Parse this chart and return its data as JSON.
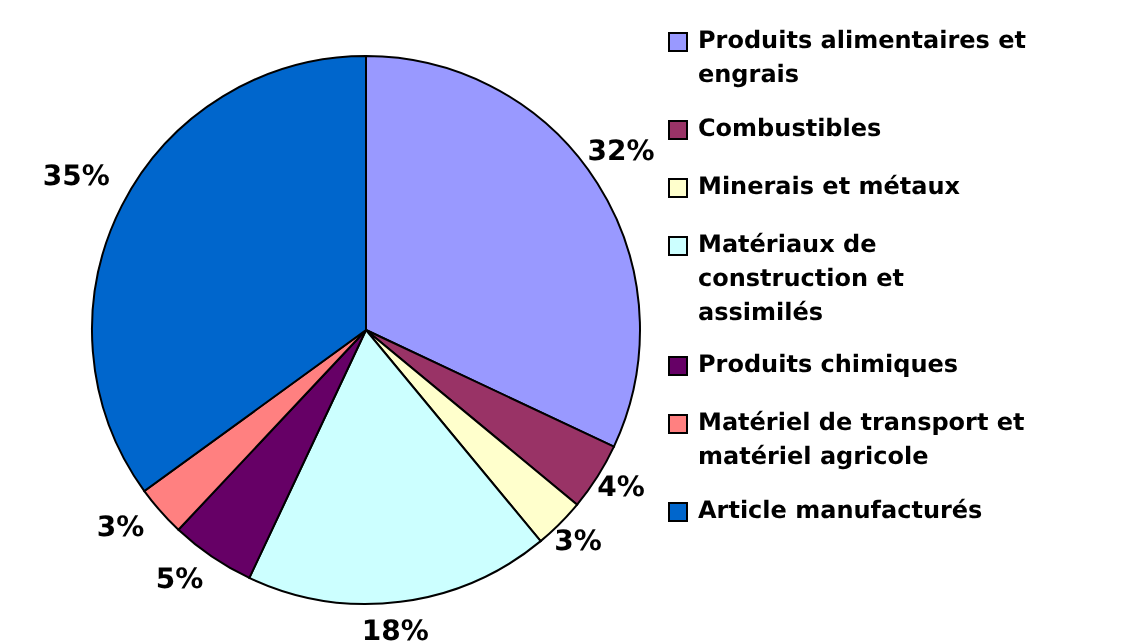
{
  "chart_data": {
    "type": "pie",
    "categories": [
      "Produits alimentaires et engrais",
      "Combustibles",
      "Minerais et métaux",
      "Matériaux de construction et assimilés",
      "Produits chimiques",
      "Matériel de transport et matériel agricole",
      "Article manufacturés"
    ],
    "values": [
      32,
      4,
      3,
      18,
      5,
      3,
      35
    ],
    "value_labels": [
      "32%",
      "4%",
      "3%",
      "18%",
      "5%",
      "3%",
      "35%"
    ],
    "colors": [
      "#9999ff",
      "#993366",
      "#ffffcc",
      "#ccffff",
      "#660066",
      "#ff8080",
      "#0066cc"
    ],
    "legend": "right"
  }
}
